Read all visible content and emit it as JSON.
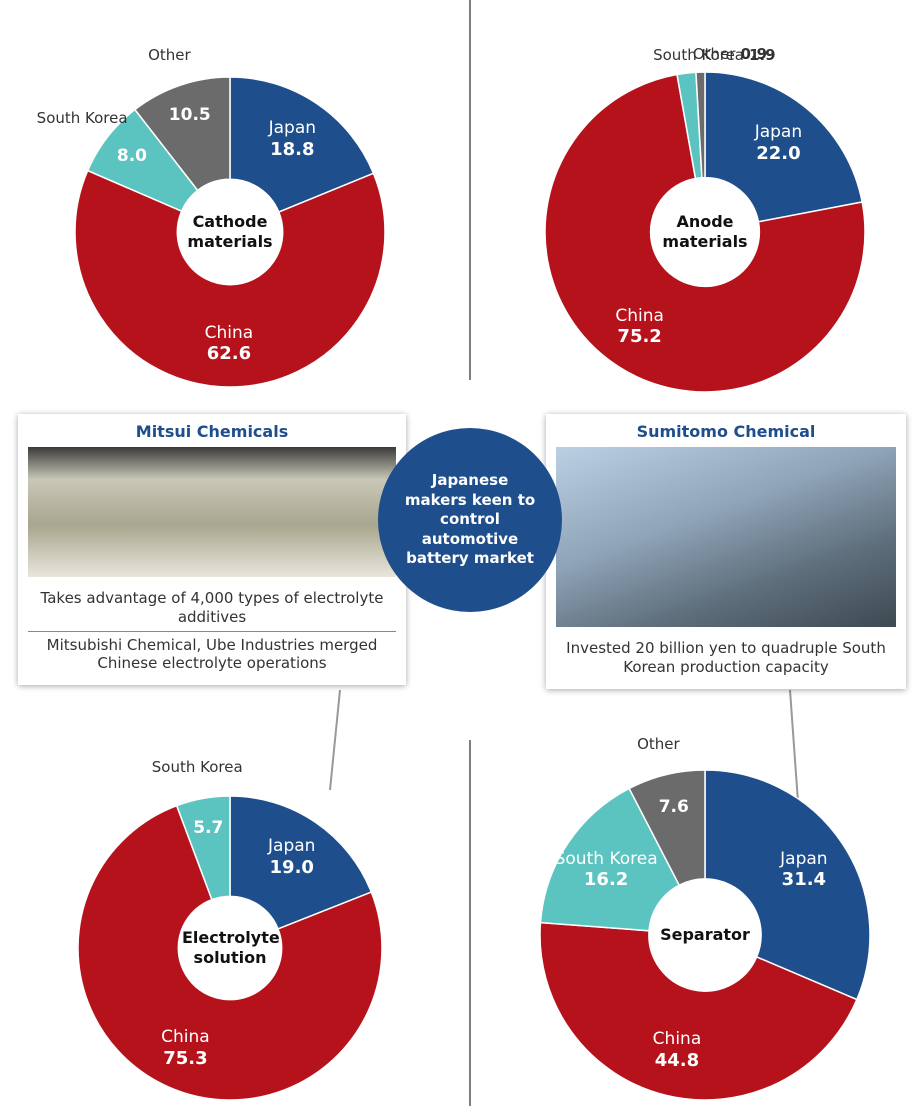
{
  "chart_data": [
    {
      "type": "pie",
      "title": "Cathode materials",
      "categories": [
        "Japan",
        "China",
        "South Korea",
        "Other"
      ],
      "values": [
        18.8,
        62.6,
        8.0,
        10.5
      ],
      "value_labels": [
        "18.8",
        "62.6",
        "8.0",
        "10.5"
      ],
      "colors": [
        "#1f4e8c",
        "#b5121b",
        "#5cc4c0",
        "#6b6b6b"
      ],
      "donut": true
    },
    {
      "type": "pie",
      "title": "Anode materials",
      "categories": [
        "Japan",
        "China",
        "South Korea",
        "Other"
      ],
      "values": [
        22.0,
        75.2,
        1.9,
        0.9
      ],
      "value_labels": [
        "22.0",
        "75.2",
        "1.9",
        "0.9"
      ],
      "colors": [
        "#1f4e8c",
        "#b5121b",
        "#5cc4c0",
        "#6b6b6b"
      ],
      "donut": true
    },
    {
      "type": "pie",
      "title": "Electrolyte solution",
      "categories": [
        "Japan",
        "China",
        "South Korea"
      ],
      "values": [
        19.0,
        75.3,
        5.7
      ],
      "value_labels": [
        "19.0",
        "75.3",
        "5.7"
      ],
      "colors": [
        "#1f4e8c",
        "#b5121b",
        "#5cc4c0"
      ],
      "donut": true
    },
    {
      "type": "pie",
      "title": "Separator",
      "categories": [
        "Japan",
        "China",
        "South Korea",
        "Other"
      ],
      "values": [
        31.4,
        44.8,
        16.2,
        7.6
      ],
      "value_labels": [
        "31.4",
        "44.8",
        "16.2",
        "7.6"
      ],
      "colors": [
        "#1f4e8c",
        "#b5121b",
        "#5cc4c0",
        "#6b6b6b"
      ],
      "donut": true
    }
  ],
  "center_label": "Japanese makers keen to control automotive battery market",
  "callouts": [
    {
      "title": "Mitsui Chemicals",
      "lines": [
        "Takes advantage of 4,000 types of electrolyte additives",
        "Mitsubishi Chemical, Ube Industries merged Chinese electrolyte operations"
      ]
    },
    {
      "title": "Sumitomo Chemical",
      "lines": [
        "Invested 20 billion yen to quadruple South Korean production capacity"
      ]
    }
  ]
}
